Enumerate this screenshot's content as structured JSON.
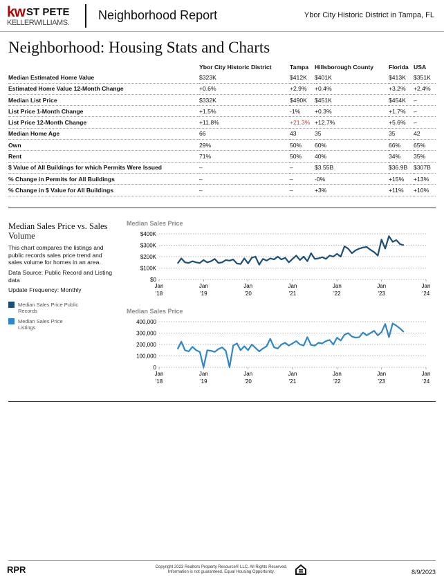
{
  "header": {
    "logo_kw": "kw",
    "logo_office": "ST PETE",
    "logo_brand": "KELLERWILLIAMS.",
    "title": "Neighborhood Report",
    "location": "Ybor City Historic District in Tampa, FL"
  },
  "title": "Neighborhood: Housing Stats and Charts",
  "table": {
    "columns": [
      "Ybor City Historic District",
      "Tampa",
      "Hillsborough County",
      "Florida",
      "USA"
    ],
    "rows": [
      [
        "Median Estimated Home Value",
        "$323K",
        "$412K",
        "$401K",
        "$413K",
        "$351K"
      ],
      [
        "Estimated Home Value 12-Month Change",
        "+0.6%",
        "+2.9%",
        "+0.4%",
        "+3.2%",
        "+2.4%"
      ],
      [
        "Median List Price",
        "$332K",
        "$490K",
        "$451K",
        "$454K",
        "–"
      ],
      [
        "List Price 1-Month Change",
        "+1.5%",
        "-1%",
        "+0.3%",
        "+1.7%",
        "–"
      ],
      [
        "List Price 12-Month Change",
        "+11.8%",
        "+21.3%",
        "+12.7%",
        "+5.6%",
        "–"
      ],
      [
        "Median Home Age",
        "66",
        "43",
        "35",
        "35",
        "42"
      ],
      [
        "Own",
        "29%",
        "50%",
        "60%",
        "66%",
        "65%"
      ],
      [
        "Rent",
        "71%",
        "50%",
        "40%",
        "34%",
        "35%"
      ],
      [
        "$ Value of All Buildings for which Permits Were Issued",
        "–",
        "–",
        "$3.55B",
        "$36.9B",
        "$307B"
      ],
      [
        "% Change in Permits for All Buildings",
        "–",
        "–",
        "-0%",
        "+15%",
        "+13%"
      ],
      [
        "% Change in $ Value for All Buildings",
        "–",
        "–",
        "+3%",
        "+11%",
        "+10%"
      ]
    ]
  },
  "section": {
    "title": "Median Sales Price vs. Sales Volume",
    "description": "This chart compares the listings and public records sales price trend and sales volume for homes in an area.",
    "source": "Data Source: Public Record and Listing data",
    "frequency": "Update Frequency: Monthly"
  },
  "chart_data": [
    {
      "type": "line",
      "title": "Median Sales Price",
      "x": [
        "2018-06",
        "2018-07",
        "2018-08",
        "2018-09",
        "2018-10",
        "2018-11",
        "2018-12",
        "2019-01",
        "2019-02",
        "2019-03",
        "2019-04",
        "2019-05",
        "2019-06",
        "2019-07",
        "2019-08",
        "2019-09",
        "2019-10",
        "2019-11",
        "2019-12",
        "2020-01",
        "2020-02",
        "2020-03",
        "2020-04",
        "2020-05",
        "2020-06",
        "2020-07",
        "2020-08",
        "2020-09",
        "2020-10",
        "2020-11",
        "2020-12",
        "2021-01",
        "2021-02",
        "2021-03",
        "2021-04",
        "2021-05",
        "2021-06",
        "2021-07",
        "2021-08",
        "2021-09",
        "2021-10",
        "2021-11",
        "2021-12",
        "2022-01",
        "2022-02",
        "2022-03",
        "2022-04",
        "2022-05",
        "2022-06",
        "2022-07",
        "2022-08",
        "2022-09",
        "2022-10",
        "2022-11",
        "2022-12",
        "2023-01",
        "2023-02",
        "2023-03",
        "2023-04",
        "2023-05",
        "2023-06",
        "2023-07"
      ],
      "series": [
        {
          "name": "Median Sales Price Public Records",
          "color": "#1d4e76",
          "values": [
            140000,
            185000,
            150000,
            145000,
            160000,
            150000,
            145000,
            170000,
            150000,
            160000,
            180000,
            145000,
            150000,
            170000,
            165000,
            175000,
            140000,
            135000,
            185000,
            140000,
            190000,
            200000,
            130000,
            180000,
            165000,
            185000,
            175000,
            200000,
            175000,
            190000,
            150000,
            180000,
            210000,
            170000,
            200000,
            160000,
            230000,
            180000,
            185000,
            195000,
            180000,
            210000,
            200000,
            225000,
            200000,
            290000,
            270000,
            230000,
            255000,
            270000,
            280000,
            285000,
            260000,
            240000,
            210000,
            350000,
            270000,
            380000,
            330000,
            345000,
            310000,
            300000
          ]
        }
      ],
      "xlim": [
        "2018-01",
        "2024-01"
      ],
      "xticks": [
        {
          "value": "2018-01",
          "label": "Jan '18"
        },
        {
          "value": "2019-01",
          "label": "Jan '19"
        },
        {
          "value": "2020-01",
          "label": "Jan '20"
        },
        {
          "value": "2021-01",
          "label": "Jan '21"
        },
        {
          "value": "2022-01",
          "label": "Jan '22"
        },
        {
          "value": "2023-01",
          "label": "Jan '23"
        },
        {
          "value": "2024-01",
          "label": "Jan '24"
        }
      ],
      "ylim": [
        0,
        400000
      ],
      "yticks": [
        {
          "value": 0,
          "label": "$0"
        },
        {
          "value": 100000,
          "label": "$100K"
        },
        {
          "value": 200000,
          "label": "$200K"
        },
        {
          "value": 300000,
          "label": "$300K"
        },
        {
          "value": 400000,
          "label": "$400K"
        }
      ],
      "grid": true
    },
    {
      "type": "line",
      "title": "Median Sales Price",
      "x": [
        "2018-06",
        "2018-07",
        "2018-08",
        "2018-09",
        "2018-10",
        "2018-11",
        "2018-12",
        "2019-01",
        "2019-02",
        "2019-03",
        "2019-04",
        "2019-05",
        "2019-06",
        "2019-07",
        "2019-08",
        "2019-09",
        "2019-10",
        "2019-11",
        "2019-12",
        "2020-01",
        "2020-02",
        "2020-03",
        "2020-04",
        "2020-05",
        "2020-06",
        "2020-07",
        "2020-08",
        "2020-09",
        "2020-10",
        "2020-11",
        "2020-12",
        "2021-01",
        "2021-02",
        "2021-03",
        "2021-04",
        "2021-05",
        "2021-06",
        "2021-07",
        "2021-08",
        "2021-09",
        "2021-10",
        "2021-11",
        "2021-12",
        "2022-01",
        "2022-02",
        "2022-03",
        "2022-04",
        "2022-05",
        "2022-06",
        "2022-07",
        "2022-08",
        "2022-09",
        "2022-10",
        "2022-11",
        "2022-12",
        "2023-01",
        "2023-02",
        "2023-03",
        "2023-04",
        "2023-05",
        "2023-06",
        "2023-07"
      ],
      "series": [
        {
          "name": "Median Sales Price Listings",
          "color": "#2f86c8",
          "values": [
            160000,
            225000,
            150000,
            140000,
            180000,
            150000,
            135000,
            0,
            150000,
            145000,
            135000,
            160000,
            175000,
            145000,
            0,
            190000,
            210000,
            150000,
            185000,
            150000,
            200000,
            170000,
            140000,
            165000,
            185000,
            250000,
            175000,
            165000,
            200000,
            215000,
            190000,
            210000,
            230000,
            200000,
            190000,
            265000,
            195000,
            190000,
            215000,
            210000,
            230000,
            240000,
            200000,
            260000,
            235000,
            285000,
            300000,
            270000,
            260000,
            265000,
            305000,
            280000,
            300000,
            320000,
            280000,
            310000,
            380000,
            265000,
            385000,
            365000,
            340000,
            310000
          ]
        }
      ],
      "xlim": [
        "2018-01",
        "2024-01"
      ],
      "xticks": [
        {
          "value": "2018-01",
          "label": "Jan '18"
        },
        {
          "value": "2019-01",
          "label": "Jan '19"
        },
        {
          "value": "2020-01",
          "label": "Jan '20"
        },
        {
          "value": "2021-01",
          "label": "Jan '21"
        },
        {
          "value": "2022-01",
          "label": "Jan '22"
        },
        {
          "value": "2023-01",
          "label": "Jan '23"
        },
        {
          "value": "2024-01",
          "label": "Jan '24"
        }
      ],
      "ylim": [
        0,
        400000
      ],
      "yticks": [
        {
          "value": 0,
          "label": "0"
        },
        {
          "value": 100000,
          "label": "100,000"
        },
        {
          "value": 200000,
          "label": "200,000"
        },
        {
          "value": 300000,
          "label": "300,000"
        },
        {
          "value": 400000,
          "label": "400,000"
        }
      ],
      "grid": true
    }
  ],
  "footer": {
    "brand": "RPR",
    "copyright": "Copyright 2023 Realtors Property Resource® LLC. All Rights Reserved.",
    "notice": "Information is not guaranteed. Equal Housing Opportunity.",
    "date": "8/9/2023"
  }
}
